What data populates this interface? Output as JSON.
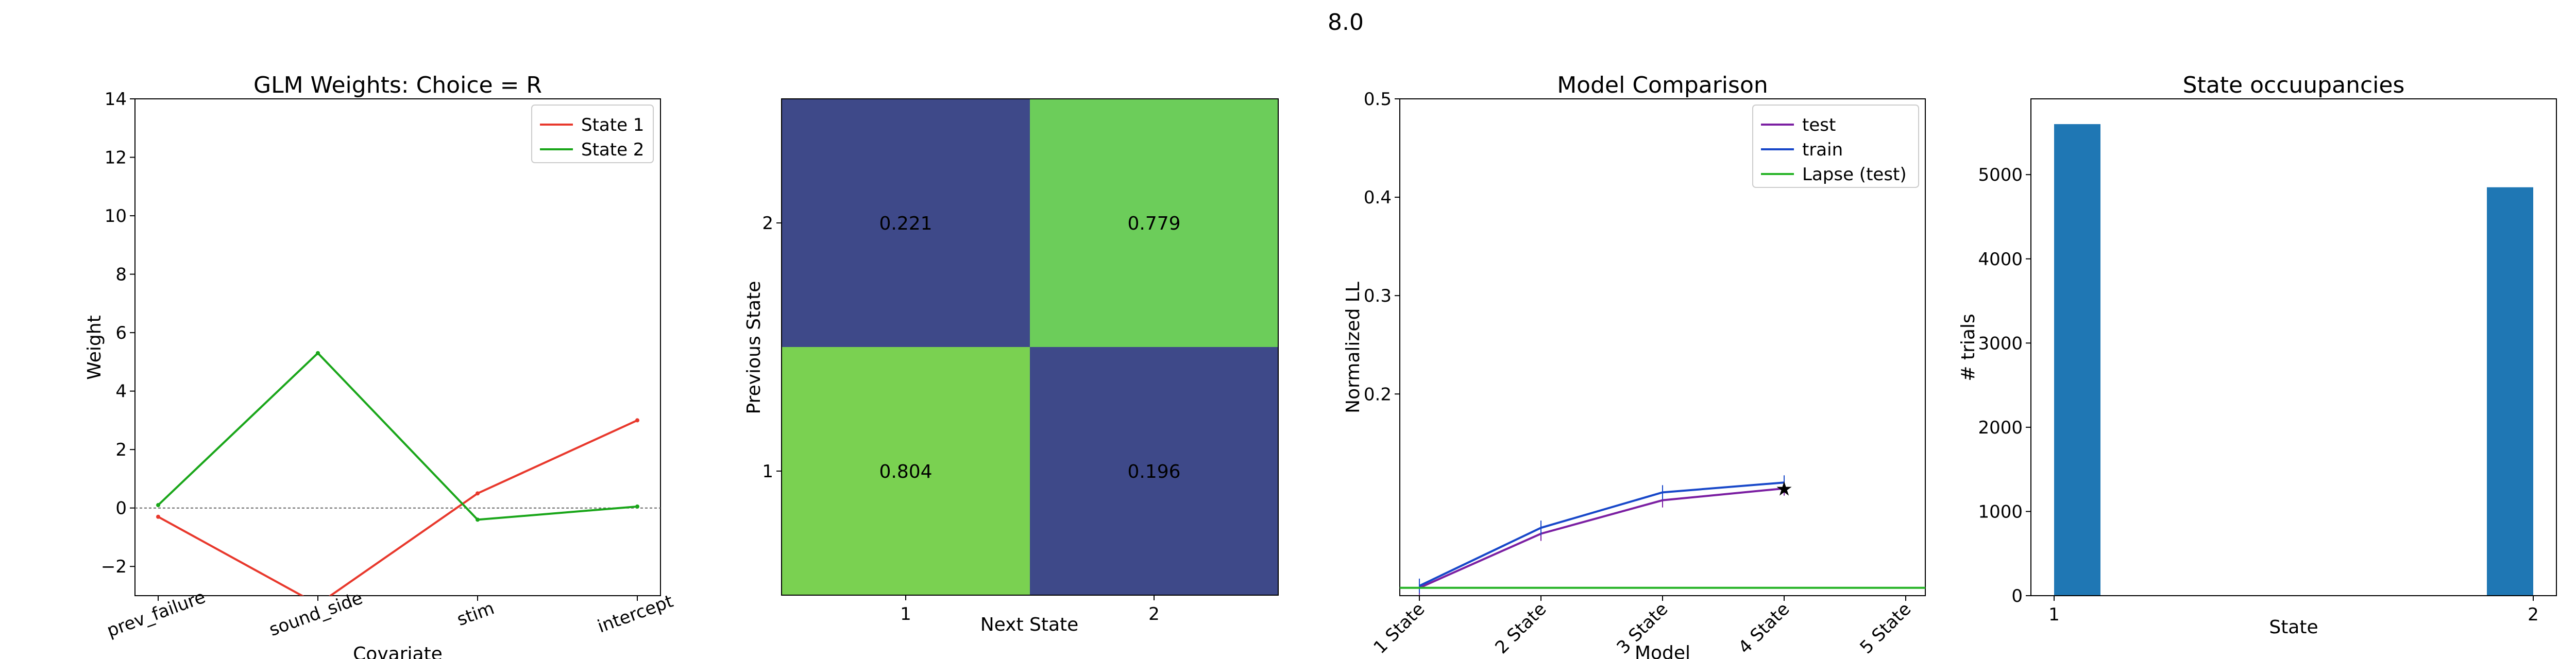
{
  "suptitle": "8.0",
  "colors": {
    "state1": "#e8382c",
    "state2": "#1aa61a",
    "test": "#7b1fa2",
    "train": "#1747c9",
    "lapse": "#26b326",
    "bar": "#1f77b4",
    "heat_high": "#7ad151",
    "heat_high2": "#6ccd5a",
    "heat_low": "#3e4989"
  },
  "chart_data": [
    {
      "type": "line",
      "title": "GLM Weights: Choice = R",
      "xlabel": "Covariate",
      "ylabel": "Weight",
      "categories": [
        "prev_failure",
        "sound_side",
        "stim",
        "intercept"
      ],
      "ylim": [
        -3,
        14
      ],
      "yticks": [
        -2,
        0,
        2,
        4,
        6,
        8,
        10,
        12,
        14
      ],
      "zero_line": true,
      "legend": "top-right",
      "series": [
        {
          "name": "State 1",
          "values": [
            -0.3,
            -3.3,
            0.5,
            3.0
          ]
        },
        {
          "name": "State 2",
          "values": [
            0.1,
            5.3,
            -0.4,
            0.05
          ]
        }
      ]
    },
    {
      "type": "heatmap",
      "title": "",
      "xlabel": "Next State",
      "ylabel": "Previous State",
      "xticks": [
        "1",
        "2"
      ],
      "yticks": [
        "2",
        "1"
      ],
      "rows": [
        {
          "label": "2",
          "values": [
            0.221,
            0.779
          ],
          "text": [
            "0.221",
            "0.779"
          ]
        },
        {
          "label": "1",
          "values": [
            0.804,
            0.196
          ],
          "text": [
            "0.804",
            "0.196"
          ]
        }
      ]
    },
    {
      "type": "line",
      "title": "Model Comparison",
      "xlabel": "Model",
      "ylabel": "Normalized LL",
      "categories": [
        "1 State",
        "2 State",
        "3 State",
        "4 State",
        "5 State"
      ],
      "ylim": [
        -0.005,
        0.5
      ],
      "yticks": [
        0.2,
        0.3,
        0.4,
        0.5
      ],
      "legend": "top-right",
      "best_marker": {
        "series": "test",
        "category": "4 State",
        "symbol": "★"
      },
      "series": [
        {
          "name": "test",
          "values": [
            0.003,
            0.058,
            0.092,
            0.104,
            null
          ]
        },
        {
          "name": "train",
          "values": [
            0.005,
            0.064,
            0.1,
            0.11,
            null
          ]
        },
        {
          "name": "Lapse (test)",
          "values": [
            0.003,
            0.003,
            0.003,
            0.003,
            0.003
          ],
          "extend_full": true
        }
      ]
    },
    {
      "type": "bar",
      "title": "State occuupancies",
      "xlabel": "State",
      "ylabel": "# trials",
      "categories": [
        "1",
        "2"
      ],
      "values": [
        5600,
        4850
      ],
      "ylim": [
        0,
        5900
      ],
      "yticks": [
        0,
        1000,
        2000,
        3000,
        4000,
        5000
      ]
    }
  ]
}
